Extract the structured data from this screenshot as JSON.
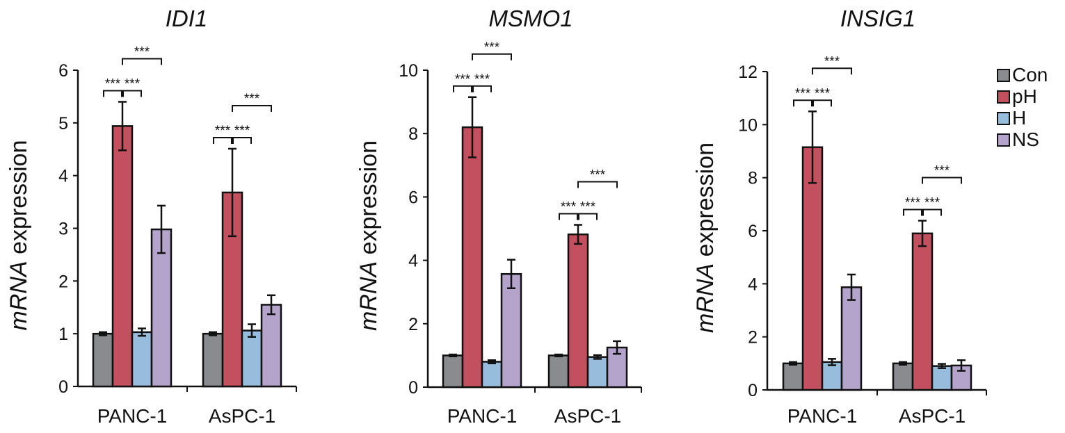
{
  "chart_data": [
    {
      "type": "bar",
      "title": "IDI1",
      "ylabel_italic": "mRNA",
      "ylabel_rest": " expression",
      "ylim": [
        0,
        6
      ],
      "yticks": [
        0,
        1,
        2,
        3,
        4,
        5,
        6
      ],
      "categories": [
        "PANC-1",
        "AsPC-1"
      ],
      "series": [
        {
          "name": "Con",
          "values": [
            1.0,
            1.0
          ],
          "errors": [
            0.03,
            0.03
          ]
        },
        {
          "name": "pH",
          "values": [
            4.94,
            3.68
          ],
          "errors": [
            0.46,
            0.83
          ]
        },
        {
          "name": "H",
          "values": [
            1.03,
            1.06
          ],
          "errors": [
            0.07,
            0.12
          ]
        },
        {
          "name": "NS",
          "values": [
            2.98,
            1.55
          ],
          "errors": [
            0.45,
            0.18
          ]
        }
      ],
      "significance": [
        {
          "category": 0,
          "from": 0,
          "to": 1,
          "label": "***"
        },
        {
          "category": 0,
          "from": 1,
          "to": 2,
          "label": "***"
        },
        {
          "category": 0,
          "from": 1,
          "to": 3,
          "label": "***"
        },
        {
          "category": 1,
          "from": 0,
          "to": 1,
          "label": "***"
        },
        {
          "category": 1,
          "from": 1,
          "to": 2,
          "label": "***"
        },
        {
          "category": 1,
          "from": 1,
          "to": 3,
          "label": "***"
        }
      ]
    },
    {
      "type": "bar",
      "title": "MSMO1",
      "ylabel_italic": "mRNA",
      "ylabel_rest": " expression",
      "ylim": [
        0,
        10
      ],
      "yticks": [
        0,
        2,
        4,
        6,
        8,
        10
      ],
      "categories": [
        "PANC-1",
        "AsPC-1"
      ],
      "series": [
        {
          "name": "Con",
          "values": [
            1.0,
            1.0
          ],
          "errors": [
            0.03,
            0.03
          ]
        },
        {
          "name": "pH",
          "values": [
            8.2,
            4.82
          ],
          "errors": [
            0.95,
            0.3
          ]
        },
        {
          "name": "H",
          "values": [
            0.8,
            0.95
          ],
          "errors": [
            0.05,
            0.06
          ]
        },
        {
          "name": "NS",
          "values": [
            3.57,
            1.25
          ],
          "errors": [
            0.45,
            0.2
          ]
        }
      ],
      "significance": [
        {
          "category": 0,
          "from": 0,
          "to": 1,
          "label": "***"
        },
        {
          "category": 0,
          "from": 1,
          "to": 2,
          "label": "***"
        },
        {
          "category": 0,
          "from": 1,
          "to": 3,
          "label": "***"
        },
        {
          "category": 1,
          "from": 0,
          "to": 1,
          "label": "***"
        },
        {
          "category": 1,
          "from": 1,
          "to": 2,
          "label": "***"
        },
        {
          "category": 1,
          "from": 1,
          "to": 3,
          "label": "***"
        }
      ]
    },
    {
      "type": "bar",
      "title": "INSIG1",
      "ylabel_italic": "mRNA",
      "ylabel_rest": " expression",
      "ylim": [
        0,
        12
      ],
      "yticks": [
        0,
        2,
        4,
        6,
        8,
        10,
        12
      ],
      "categories": [
        "PANC-1",
        "AsPC-1"
      ],
      "series": [
        {
          "name": "Con",
          "values": [
            1.0,
            1.0
          ],
          "errors": [
            0.05,
            0.05
          ]
        },
        {
          "name": "pH",
          "values": [
            9.15,
            5.9
          ],
          "errors": [
            1.35,
            0.48
          ]
        },
        {
          "name": "H",
          "values": [
            1.05,
            0.9
          ],
          "errors": [
            0.12,
            0.08
          ]
        },
        {
          "name": "NS",
          "values": [
            3.87,
            0.92
          ],
          "errors": [
            0.48,
            0.2
          ]
        }
      ],
      "significance": [
        {
          "category": 0,
          "from": 0,
          "to": 1,
          "label": "***"
        },
        {
          "category": 0,
          "from": 1,
          "to": 2,
          "label": "***"
        },
        {
          "category": 0,
          "from": 1,
          "to": 3,
          "label": "***"
        },
        {
          "category": 1,
          "from": 0,
          "to": 1,
          "label": "***"
        },
        {
          "category": 1,
          "from": 1,
          "to": 2,
          "label": "***"
        },
        {
          "category": 1,
          "from": 1,
          "to": 3,
          "label": "***"
        }
      ]
    }
  ],
  "legend": {
    "placement": "top-right",
    "items": [
      {
        "label": "Con",
        "color": "#898b8e"
      },
      {
        "label": "pH",
        "color": "#c2505e"
      },
      {
        "label": "H",
        "color": "#98bcdc"
      },
      {
        "label": "NS",
        "color": "#b4a4cc"
      }
    ]
  }
}
